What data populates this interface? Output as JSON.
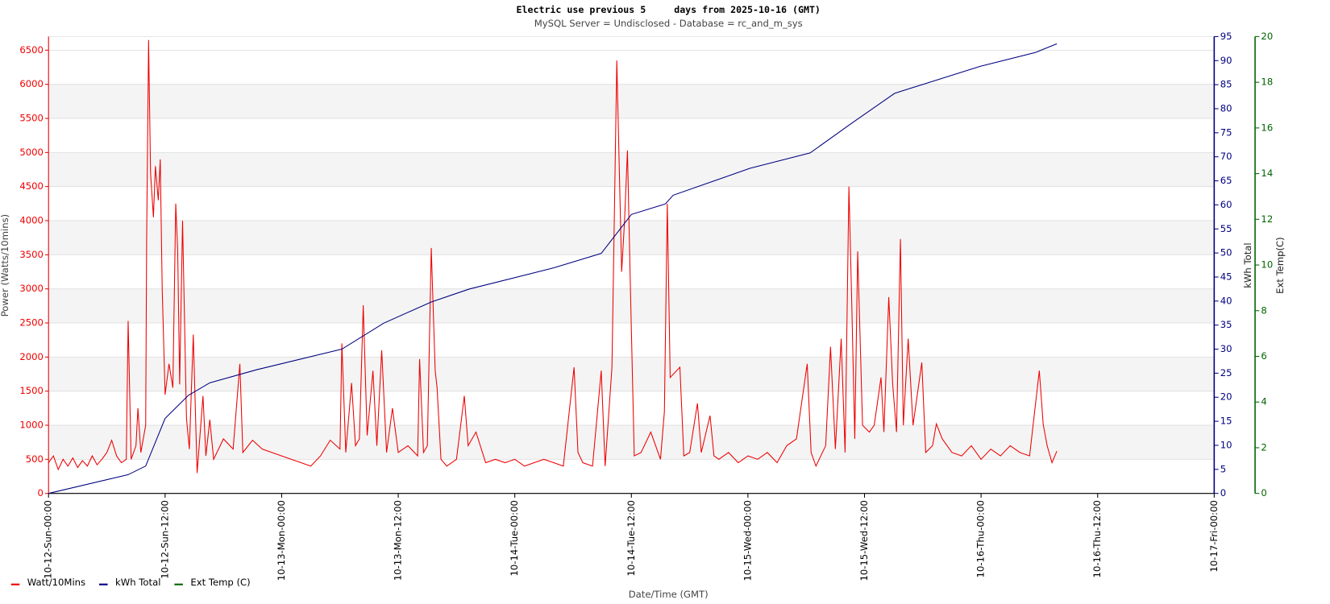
{
  "chart_data": {
    "type": "line",
    "title": "Electric use previous 5     days from 2025-10-16 (GMT)",
    "subtitle": "MySQL Server = Undisclosed - Database = rc_and_m_sys",
    "ylabel": "Power (Watts/10mins)",
    "y2label": "kWh Total",
    "y3label": "Ext Temp(C)",
    "xlabel": "Date/Time (GMT)",
    "xlim": [
      0,
      120
    ],
    "xticks": [
      {
        "value": 0,
        "label": "10-12-Sun-00:00"
      },
      {
        "value": 12,
        "label": "10-12-Sun-12:00"
      },
      {
        "value": 24,
        "label": "10-13-Mon-00:00"
      },
      {
        "value": 36,
        "label": "10-13-Mon-12:00"
      },
      {
        "value": 48,
        "label": "10-14-Tue-00:00"
      },
      {
        "value": 60,
        "label": "10-14-Tue-12:00"
      },
      {
        "value": 72,
        "label": "10-15-Wed-00:00"
      },
      {
        "value": 84,
        "label": "10-15-Wed-12:00"
      },
      {
        "value": 96,
        "label": "10-16-Thu-00:00"
      },
      {
        "value": 108,
        "label": "10-16-Thu-12:00"
      },
      {
        "value": 120,
        "label": "10-17-Fri-00:00"
      }
    ],
    "ylim": [
      0,
      6700
    ],
    "yticks": [
      0,
      500,
      1000,
      1500,
      2000,
      2500,
      3000,
      3500,
      4000,
      4500,
      5000,
      5500,
      6000,
      6500
    ],
    "y2lim": [
      0,
      95
    ],
    "y2ticks": [
      0,
      5,
      10,
      15,
      20,
      25,
      30,
      35,
      40,
      45,
      50,
      55,
      60,
      65,
      70,
      75,
      80,
      85,
      90,
      95
    ],
    "y3lim": [
      0,
      20
    ],
    "y3ticks": [
      0,
      2,
      4,
      6,
      8,
      10,
      12,
      14,
      16,
      18,
      20
    ],
    "grid": true,
    "legend": "bottom-left",
    "series": [
      {
        "name": "Watt/10Mins",
        "color": "#ee0000",
        "axis": "y",
        "x": [
          0,
          0.5,
          1,
          1.5,
          2,
          2.5,
          3,
          3.5,
          4,
          4.5,
          5,
          5.5,
          6,
          6.5,
          7,
          7.5,
          8,
          8.2,
          8.5,
          9,
          9.2,
          9.5,
          10,
          10.1,
          10.3,
          10.5,
          10.8,
          11,
          11.3,
          11.5,
          11.7,
          12,
          12.4,
          12.8,
          13.1,
          13.3,
          13.5,
          13.8,
          14.2,
          14.5,
          14.9,
          15.3,
          15.9,
          16.2,
          16.6,
          17,
          18,
          19,
          19.7,
          20,
          21,
          22,
          23,
          24,
          25,
          26,
          27,
          28,
          29,
          30,
          30.2,
          30.6,
          31.2,
          31.6,
          32,
          32.4,
          32.8,
          33.4,
          33.8,
          34.3,
          34.8,
          35.4,
          36,
          37,
          38,
          38.2,
          38.6,
          39,
          39.4,
          39.8,
          40,
          40.4,
          41,
          42,
          42.8,
          43.2,
          44,
          45,
          46,
          47,
          48,
          49,
          50,
          51,
          52,
          53,
          54.1,
          54.5,
          55,
          56,
          56.9,
          57.3,
          58,
          58.5,
          59,
          59.3,
          59.6,
          59.9,
          60.3,
          61,
          62,
          63,
          63.4,
          63.7,
          64,
          65,
          65.4,
          66,
          66.8,
          67.2,
          68.1,
          68.5,
          69,
          70,
          71,
          72,
          73,
          74,
          75,
          76,
          77,
          78.1,
          78.5,
          79,
          80,
          80.5,
          81,
          81.6,
          82,
          82.4,
          82.7,
          83,
          83.3,
          83.8,
          84.5,
          85,
          85.7,
          86,
          86.5,
          86.9,
          87.3,
          87.7,
          88,
          88.5,
          89,
          89.9,
          90.3,
          91,
          91.4,
          92,
          93,
          94,
          95,
          96,
          97,
          98,
          99,
          100,
          101,
          102,
          102.4,
          102.8,
          103.3,
          103.8
        ],
        "values": [
          450,
          550,
          350,
          500,
          400,
          520,
          380,
          480,
          400,
          550,
          420,
          500,
          600,
          780,
          550,
          450,
          500,
          2530,
          500,
          700,
          1250,
          600,
          1000,
          3700,
          6650,
          4700,
          4050,
          4800,
          4300,
          4900,
          3000,
          1450,
          1900,
          1550,
          4250,
          3550,
          1600,
          4000,
          1100,
          650,
          2330,
          300,
          1430,
          550,
          1080,
          500,
          800,
          650,
          1900,
          600,
          780,
          650,
          600,
          550,
          500,
          450,
          400,
          550,
          780,
          650,
          2200,
          600,
          1620,
          700,
          800,
          2760,
          850,
          1800,
          700,
          2100,
          600,
          1250,
          600,
          700,
          550,
          1970,
          600,
          700,
          3600,
          1800,
          1550,
          500,
          400,
          500,
          1430,
          700,
          900,
          450,
          500,
          450,
          500,
          400,
          450,
          500,
          450,
          400,
          1850,
          600,
          450,
          400,
          1800,
          400,
          1850,
          6350,
          3250,
          4000,
          5030,
          3000,
          550,
          600,
          900,
          500,
          1200,
          4250,
          1700,
          1850,
          550,
          600,
          1320,
          600,
          1140,
          550,
          500,
          600,
          450,
          550,
          500,
          600,
          450,
          700,
          800,
          1900,
          600,
          400,
          700,
          2150,
          650,
          2270,
          600,
          4500,
          2700,
          800,
          3550,
          1000,
          900,
          1000,
          1700,
          900,
          2880,
          1600,
          900,
          3730,
          1000,
          2270,
          1000,
          1920,
          600,
          700,
          1020,
          800,
          600,
          550,
          700,
          500,
          650,
          550,
          700,
          600,
          550,
          1800,
          1010,
          700,
          450,
          620
        ]
      },
      {
        "name": "kWh Total",
        "color": "#000080",
        "axis": "y2",
        "x": [
          0,
          8.2,
          10,
          12,
          14.4,
          16.6,
          21.4,
          30.2,
          34.5,
          39.4,
          43.3,
          52,
          56.9,
          60,
          63.5,
          64.3,
          72.2,
          78.4,
          82.7,
          87.1,
          95.9,
          101.6,
          103.8
        ],
        "values": [
          0,
          3.9,
          5.7,
          15.6,
          20.4,
          23,
          25.7,
          30,
          35.4,
          39.8,
          42.5,
          46.9,
          49.9,
          58,
          60.2,
          62,
          67.6,
          70.8,
          77,
          83.2,
          88.8,
          91.7,
          93.5
        ]
      },
      {
        "name": "Ext Temp (C)",
        "color": "#006400",
        "axis": "y3"
      }
    ]
  }
}
